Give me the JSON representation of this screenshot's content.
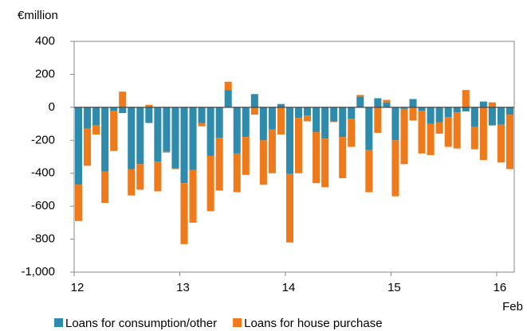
{
  "chart_data": {
    "type": "stacked_bar",
    "y_label": "€million",
    "categories": [
      "12",
      null,
      null,
      null,
      null,
      null,
      null,
      null,
      null,
      null,
      null,
      null,
      "13",
      null,
      null,
      null,
      null,
      null,
      null,
      null,
      null,
      null,
      null,
      null,
      "14",
      null,
      null,
      null,
      null,
      null,
      null,
      null,
      null,
      null,
      null,
      null,
      "15",
      null,
      null,
      null,
      null,
      null,
      null,
      null,
      null,
      null,
      null,
      null,
      "16",
      null
    ],
    "x_annotation": "Feb",
    "series": [
      {
        "name": "Loans for consumption/other",
        "color": "#2e8bab",
        "values": [
          -470,
          -130,
          -110,
          -390,
          -20,
          -35,
          -375,
          -345,
          -95,
          -330,
          -270,
          -370,
          -460,
          -380,
          -95,
          -295,
          -185,
          105,
          -280,
          -180,
          80,
          -200,
          -135,
          20,
          -405,
          -65,
          -50,
          -150,
          -190,
          -85,
          -180,
          -70,
          65,
          -260,
          55,
          30,
          -200,
          -10,
          50,
          -20,
          -100,
          -90,
          -60,
          -30,
          -25,
          -120,
          35,
          -110,
          -105,
          -45
        ]
      },
      {
        "name": "Loans for house purchase",
        "color": "#ee7a1c",
        "values": [
          -220,
          -225,
          -55,
          -190,
          -245,
          95,
          -160,
          -155,
          15,
          -180,
          -5,
          -5,
          -370,
          -320,
          -20,
          -335,
          -320,
          50,
          -235,
          -230,
          -45,
          -270,
          -265,
          -165,
          -415,
          -335,
          -35,
          -310,
          -295,
          -5,
          -250,
          -170,
          10,
          -255,
          -155,
          15,
          -340,
          -335,
          -80,
          -260,
          -190,
          -70,
          -180,
          -220,
          105,
          -135,
          -320,
          30,
          -230,
          -330
        ]
      }
    ],
    "ylim": [
      -1000,
      400
    ],
    "yticks": [
      {
        "value": -1000,
        "label": "-1,000"
      },
      -800,
      -600,
      -400,
      -200,
      0,
      200,
      400
    ],
    "legend": "bottom"
  }
}
